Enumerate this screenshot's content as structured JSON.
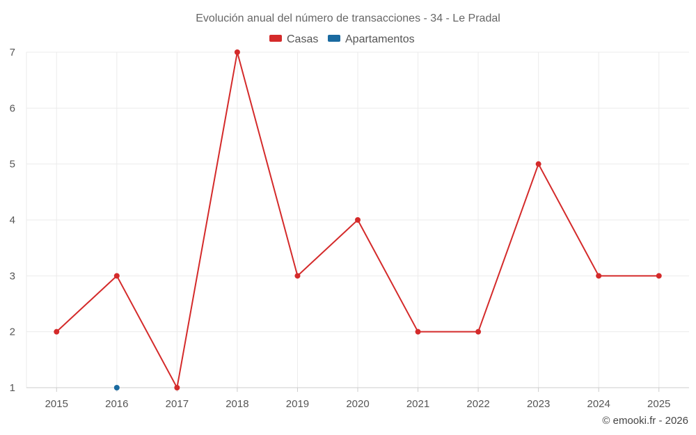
{
  "chart_data": {
    "type": "line",
    "title": "Evolución anual del número de transacciones - 34 - Le Pradal",
    "categories": [
      "2015",
      "2016",
      "2017",
      "2018",
      "2019",
      "2020",
      "2021",
      "2022",
      "2023",
      "2024",
      "2025"
    ],
    "ylim": [
      1,
      7
    ],
    "yticks": [
      1,
      2,
      3,
      4,
      5,
      6,
      7
    ],
    "grid": true,
    "legend": "top-center",
    "series": [
      {
        "name": "Casas",
        "color": "#d42a2a",
        "values": [
          2,
          3,
          1,
          7,
          3,
          4,
          2,
          2,
          5,
          3,
          3
        ]
      },
      {
        "name": "Apartamentos",
        "color": "#1a6aa0",
        "values": [
          null,
          1,
          null,
          null,
          null,
          null,
          null,
          null,
          null,
          null,
          null
        ]
      }
    ],
    "credit": "© emooki.fr - 2026"
  }
}
